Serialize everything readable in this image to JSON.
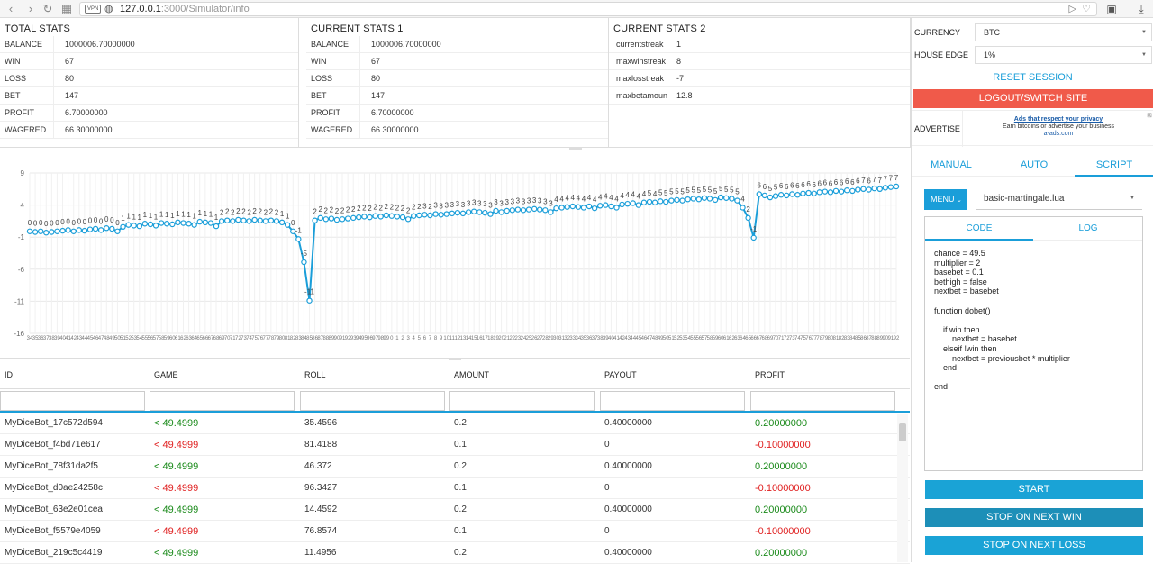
{
  "browser": {
    "vpn": "VPN",
    "url_host": "127.0.0.1",
    "url_rest": ":3000/Simulator/info",
    "back_icon": "chevron-left-icon",
    "forward_icon": "chevron-right-icon",
    "grid_icon": "grid-icon"
  },
  "stats": {
    "total": {
      "title": "TOTAL STATS",
      "rows": [
        {
          "k": "BALANCE",
          "v": "1000006.70000000"
        },
        {
          "k": "WIN",
          "v": "67"
        },
        {
          "k": "LOSS",
          "v": "80"
        },
        {
          "k": "BET",
          "v": "147"
        },
        {
          "k": "PROFIT",
          "v": "6.70000000"
        },
        {
          "k": "WAGERED",
          "v": "66.30000000"
        }
      ]
    },
    "current1": {
      "title": "CURRENT STATS 1",
      "rows": [
        {
          "k": "BALANCE",
          "v": "1000006.70000000"
        },
        {
          "k": "WIN",
          "v": "67"
        },
        {
          "k": "LOSS",
          "v": "80"
        },
        {
          "k": "BET",
          "v": "147"
        },
        {
          "k": "PROFIT",
          "v": "6.70000000"
        },
        {
          "k": "WAGERED",
          "v": "66.30000000"
        }
      ]
    },
    "current2": {
      "title": "CURRENT STATS 2",
      "rows": [
        {
          "k": "currentstreak",
          "v": "1"
        },
        {
          "k": "maxwinstreak",
          "v": "8"
        },
        {
          "k": "maxlosstreak",
          "v": "-7"
        },
        {
          "k": "maxbetamount",
          "v": "12.8"
        }
      ]
    }
  },
  "settings": {
    "currency_label": "CURRENCY",
    "currency_value": "BTC",
    "house_edge_label": "HOUSE EDGE",
    "house_edge_value": "1%",
    "reset_label": "RESET SESSION",
    "logout_label": "LOGOUT/SWITCH SITE",
    "advertise_label": "ADVERTISE",
    "ad_line1": "Ads that respect your privacy",
    "ad_line2": "Earn bitcoins or advertise your business",
    "ad_line3": "a-ads.com"
  },
  "mode_tabs": [
    "MANUAL",
    "AUTO",
    "SCRIPT"
  ],
  "script": {
    "menu_label": "MENU",
    "script_name": "basic-martingale.lua",
    "code_tab": "CODE",
    "log_tab": "LOG",
    "code": "chance = 49.5\nmultiplier = 2\nbasebet = 0.1\nbethigh = false\nnextbet = basebet\n\nfunction dobet()\n\n    if win then\n        nextbet = basebet\n    elseif !win then\n        nextbet = previousbet * multiplier\n    end\n\nend",
    "start_label": "START",
    "stop_win_label": "STOP ON NEXT WIN",
    "stop_loss_label": "STOP ON NEXT LOSS"
  },
  "table": {
    "headers": [
      "ID",
      "GAME",
      "ROLL",
      "AMOUNT",
      "PAYOUT",
      "PROFIT"
    ],
    "rows": [
      {
        "id": "MyDiceBot_17c572d594",
        "game": "< 49.4999",
        "roll": "35.4596",
        "amount": "0.2",
        "payout": "0.40000000",
        "profit": "0.20000000",
        "win": true
      },
      {
        "id": "MyDiceBot_f4bd71e617",
        "game": "< 49.4999",
        "roll": "81.4188",
        "amount": "0.1",
        "payout": "0",
        "profit": "-0.10000000",
        "win": false
      },
      {
        "id": "MyDiceBot_78f31da2f5",
        "game": "< 49.4999",
        "roll": "46.372",
        "amount": "0.2",
        "payout": "0.40000000",
        "profit": "0.20000000",
        "win": true
      },
      {
        "id": "MyDiceBot_d0ae24258c",
        "game": "< 49.4999",
        "roll": "96.3427",
        "amount": "0.1",
        "payout": "0",
        "profit": "-0.10000000",
        "win": false
      },
      {
        "id": "MyDiceBot_63e2e01cea",
        "game": "< 49.4999",
        "roll": "14.4592",
        "amount": "0.2",
        "payout": "0.40000000",
        "profit": "0.20000000",
        "win": true
      },
      {
        "id": "MyDiceBot_f5579e4059",
        "game": "< 49.4999",
        "roll": "76.8574",
        "amount": "0.1",
        "payout": "0",
        "profit": "-0.10000000",
        "win": false
      },
      {
        "id": "MyDiceBot_219c5c4419",
        "game": "< 49.4999",
        "roll": "11.4956",
        "amount": "0.2",
        "payout": "0.40000000",
        "profit": "0.20000000",
        "win": true
      }
    ]
  },
  "chart_data": {
    "type": "line",
    "ylim": [
      -16,
      9
    ],
    "yticks": [
      9,
      4,
      -1,
      -6,
      -11,
      -16
    ],
    "grid": true,
    "line_color": "#1a9ed9",
    "x_start": 34,
    "x_end": 180,
    "values": [
      -0.1,
      -0.2,
      -0.1,
      -0.3,
      -0.2,
      -0.1,
      0.0,
      0.1,
      -0.1,
      0.1,
      0.0,
      0.2,
      0.3,
      0.1,
      0.4,
      0.3,
      -0.1,
      0.6,
      0.9,
      0.8,
      0.7,
      1.1,
      1.0,
      0.8,
      1.2,
      1.1,
      1.0,
      1.3,
      1.2,
      1.1,
      0.9,
      1.4,
      1.3,
      1.2,
      0.7,
      1.5,
      1.6,
      1.5,
      1.7,
      1.6,
      1.5,
      1.7,
      1.6,
      1.5,
      1.6,
      1.5,
      1.3,
      0.9,
      -0.1,
      -1.3,
      -4.9,
      -10.9,
      1.6,
      2.0,
      1.8,
      1.9,
      1.7,
      1.8,
      1.9,
      2.0,
      2.1,
      2.2,
      2.1,
      2.3,
      2.2,
      2.4,
      2.3,
      2.2,
      2.1,
      1.8,
      2.3,
      2.4,
      2.5,
      2.4,
      2.6,
      2.5,
      2.6,
      2.7,
      2.8,
      2.7,
      2.9,
      3.0,
      2.9,
      2.8,
      2.6,
      3.1,
      2.9,
      3.1,
      3.2,
      3.3,
      3.2,
      3.3,
      3.4,
      3.3,
      3.2,
      2.9,
      3.5,
      3.6,
      3.7,
      3.8,
      3.7,
      3.6,
      3.8,
      3.5,
      3.9,
      4.0,
      3.8,
      3.6,
      4.1,
      4.2,
      4.3,
      4.0,
      4.4,
      4.5,
      4.4,
      4.6,
      4.5,
      4.7,
      4.8,
      4.7,
      4.9,
      5.0,
      4.9,
      5.1,
      5.0,
      4.8,
      5.2,
      5.1,
      5.0,
      4.7,
      3.6,
      2.0,
      -1.1,
      5.7,
      5.5,
      5.2,
      5.4,
      5.6,
      5.5,
      5.7,
      5.6,
      5.8,
      5.9,
      5.8,
      6.0,
      6.1,
      6.0,
      6.2,
      6.1,
      6.3,
      6.2,
      6.4,
      6.5,
      6.4,
      6.6,
      6.5,
      6.7,
      6.8,
      6.9
    ]
  }
}
